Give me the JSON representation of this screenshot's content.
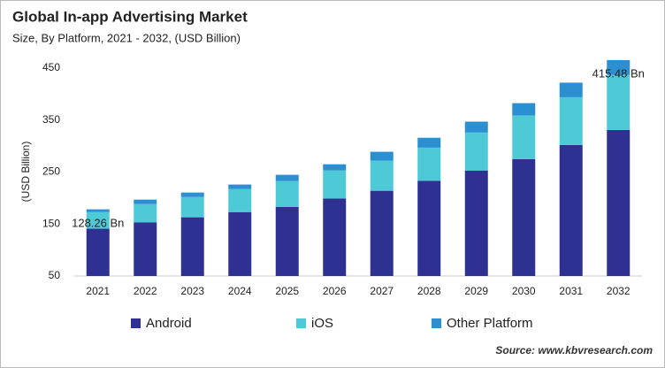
{
  "chart_data": {
    "type": "stacked_bar",
    "title": "Global In-app  Advertising Market",
    "subtitle": "Size, By Platform, 2021 - 2032, (USD Billion)",
    "y_label": "(USD Billion)",
    "source": "Source: www.kbvresearch.com",
    "categories": [
      "2021",
      "2022",
      "2023",
      "2024",
      "2025",
      "2026",
      "2027",
      "2028",
      "2029",
      "2030",
      "2031",
      "2032"
    ],
    "series": [
      {
        "name": "Android",
        "color": "#2e3192",
        "values": [
          91,
          103,
          113,
          123,
          133,
          149,
          164,
          183,
          203,
          225,
          252,
          281
        ]
      },
      {
        "name": "iOS",
        "color": "#4ec9d6",
        "values": [
          32,
          35.5,
          39,
          44.5,
          50,
          54,
          58,
          64,
          73,
          84,
          92,
          106
        ]
      },
      {
        "name": "Other Platform",
        "color": "#2b8fd1",
        "values": [
          5.26,
          8.5,
          8.6,
          8.5,
          11.7,
          12,
          17,
          19,
          21,
          23.6,
          28,
          28.48
        ]
      }
    ],
    "annotations": [
      {
        "x": "2021",
        "value": 128.26,
        "label": "128.26 Bn"
      },
      {
        "x": "2032",
        "value": 415.48,
        "label": "415.48 Bn"
      }
    ],
    "ylim": [
      50,
      450
    ],
    "yticks": [
      50,
      150,
      250,
      350,
      450
    ],
    "grid": false,
    "legend": "bottom"
  }
}
